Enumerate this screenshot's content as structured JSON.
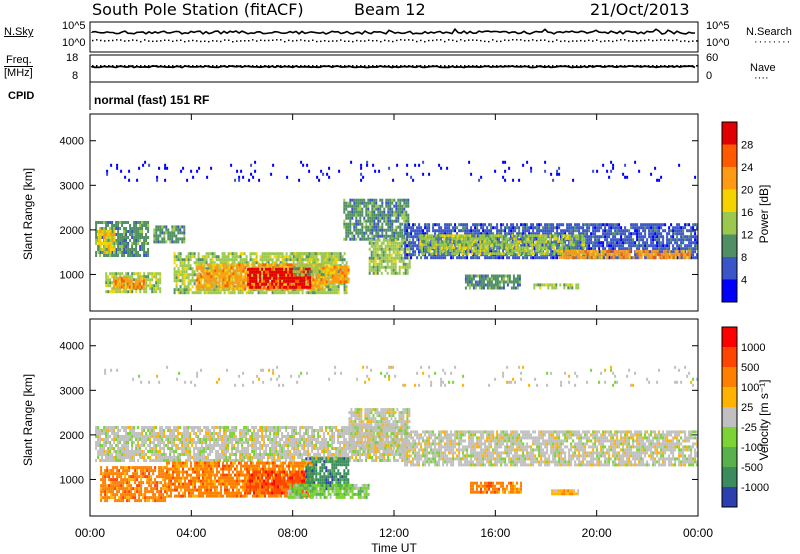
{
  "header": {
    "station": "South Pole Station (fitACF)",
    "beam": "Beam 12",
    "date": "21/Oct/2013"
  },
  "status_panels": {
    "nsky_label": "N.Sky",
    "nsearch_label": "N.Search",
    "freq_label_line1": "Freq.",
    "freq_label_line2": "[MHz]",
    "nave_label": "Nave",
    "cpid_label": "CPID",
    "noise_axis_left": [
      "10^5",
      "10^0"
    ],
    "noise_axis_right": [
      "10^5",
      "10^0"
    ],
    "freq_axis_left": [
      "18",
      "8"
    ],
    "nave_axis_right": [
      "60",
      "0"
    ],
    "cpid_text": "normal (fast) 151 RF"
  },
  "chart_data": [
    {
      "type": "heatmap",
      "name": "power",
      "title": "",
      "xlabel": "",
      "ylabel": "Slant Range [km]",
      "x_ticks": [
        "00:00",
        "04:00",
        "08:00",
        "12:00",
        "16:00",
        "20:00",
        "00:00"
      ],
      "x_hours": [
        0,
        4,
        8,
        12,
        16,
        20,
        24
      ],
      "xlim_hours": [
        0,
        24
      ],
      "y_ticks": [
        1000,
        2000,
        3000,
        4000
      ],
      "ylim": [
        180,
        4600
      ],
      "colorbar": {
        "label": "Power [dB]",
        "ticks": [
          "4",
          "8",
          "12",
          "16",
          "20",
          "24",
          "28"
        ],
        "colors": [
          "#0000ff",
          "#3a55c8",
          "#4f8f63",
          "#9bc84f",
          "#f4d300",
          "#ff9b12",
          "#ff5a00",
          "#e10000"
        ]
      },
      "regions": [
        {
          "t0": 0.2,
          "t1": 2.3,
          "r0": 1450,
          "r1": 2200,
          "level": 2
        },
        {
          "t0": 0.3,
          "t1": 1.0,
          "r0": 1500,
          "r1": 2000,
          "level": 4
        },
        {
          "t0": 0.6,
          "t1": 2.8,
          "r0": 640,
          "r1": 1050,
          "level": 3
        },
        {
          "t0": 0.9,
          "t1": 2.1,
          "r0": 700,
          "r1": 950,
          "level": 5
        },
        {
          "t0": 2.5,
          "t1": 3.7,
          "r0": 1700,
          "r1": 2100,
          "level": 2
        },
        {
          "t0": 3.3,
          "t1": 10.1,
          "r0": 620,
          "r1": 1500,
          "level": 3
        },
        {
          "t0": 4.2,
          "t1": 9.3,
          "r0": 650,
          "r1": 1250,
          "level": 5
        },
        {
          "t0": 6.2,
          "t1": 8.7,
          "r0": 700,
          "r1": 1150,
          "level": 7
        },
        {
          "t0": 8.0,
          "t1": 9.6,
          "r0": 1000,
          "r1": 1500,
          "level": 3
        },
        {
          "t0": 9.3,
          "t1": 10.2,
          "r0": 800,
          "r1": 1200,
          "level": 5
        },
        {
          "t0": 10.0,
          "t1": 12.6,
          "r0": 1800,
          "r1": 2700,
          "level": 2
        },
        {
          "t0": 11.0,
          "t1": 12.6,
          "r0": 1000,
          "r1": 1800,
          "level": 3
        },
        {
          "t0": 12.4,
          "t1": 24.0,
          "r0": 1350,
          "r1": 2150,
          "level": 1
        },
        {
          "t0": 13.0,
          "t1": 19.5,
          "r0": 1450,
          "r1": 1900,
          "level": 3
        },
        {
          "t0": 18.5,
          "t1": 23.7,
          "r0": 1350,
          "r1": 1550,
          "level": 5
        },
        {
          "t0": 14.8,
          "t1": 17.0,
          "r0": 700,
          "r1": 1000,
          "level": 2
        },
        {
          "t0": 17.5,
          "t1": 19.3,
          "r0": 680,
          "r1": 800,
          "level": 3
        },
        {
          "t0": 0.4,
          "t1": 24.0,
          "r0": 3100,
          "r1": 3550,
          "level": 0
        }
      ]
    },
    {
      "type": "heatmap",
      "name": "velocity",
      "title": "",
      "xlabel": "Time UT",
      "ylabel": "Slant Range [km]",
      "x_ticks": [
        "00:00",
        "04:00",
        "08:00",
        "12:00",
        "16:00",
        "20:00",
        "00:00"
      ],
      "x_hours": [
        0,
        4,
        8,
        12,
        16,
        20,
        24
      ],
      "xlim_hours": [
        0,
        24
      ],
      "y_ticks": [
        1000,
        2000,
        3000,
        4000
      ],
      "ylim": [
        180,
        4600
      ],
      "colorbar": {
        "label": "Velocity [m s⁻¹]",
        "ticks": [
          "1000",
          "500",
          "100",
          "25",
          "-25",
          "-100",
          "-500",
          "-1000"
        ],
        "colors": [
          "#2d3fae",
          "#3b8c5c",
          "#57b14c",
          "#7bd335",
          "#c0c0c0",
          "#ffb300",
          "#ff8000",
          "#ff4500",
          "#ff0000"
        ]
      },
      "regions": [
        {
          "t0": 0.2,
          "t1": 12.5,
          "r0": 1450,
          "r1": 2200,
          "level": 4
        },
        {
          "t0": 12.4,
          "t1": 24.0,
          "r0": 1300,
          "r1": 2100,
          "level": 4
        },
        {
          "t0": 10.2,
          "t1": 12.6,
          "r0": 1600,
          "r1": 2600,
          "level": 4
        },
        {
          "t0": 0.4,
          "t1": 3.0,
          "r0": 550,
          "r1": 1300,
          "level": 6
        },
        {
          "t0": 3.0,
          "t1": 8.8,
          "r0": 620,
          "r1": 1400,
          "level": 6
        },
        {
          "t0": 6.2,
          "t1": 8.6,
          "r0": 700,
          "r1": 1200,
          "level": 7
        },
        {
          "t0": 8.5,
          "t1": 10.2,
          "r0": 800,
          "r1": 1500,
          "level": 1
        },
        {
          "t0": 7.8,
          "t1": 11.0,
          "r0": 620,
          "r1": 900,
          "level": 3
        },
        {
          "t0": 15.0,
          "t1": 17.0,
          "r0": 700,
          "r1": 950,
          "level": 6
        },
        {
          "t0": 18.2,
          "t1": 19.3,
          "r0": 650,
          "r1": 780,
          "level": 5
        },
        {
          "t0": 0.4,
          "t1": 24.0,
          "r0": 3100,
          "r1": 3550,
          "level": 4
        }
      ]
    }
  ]
}
